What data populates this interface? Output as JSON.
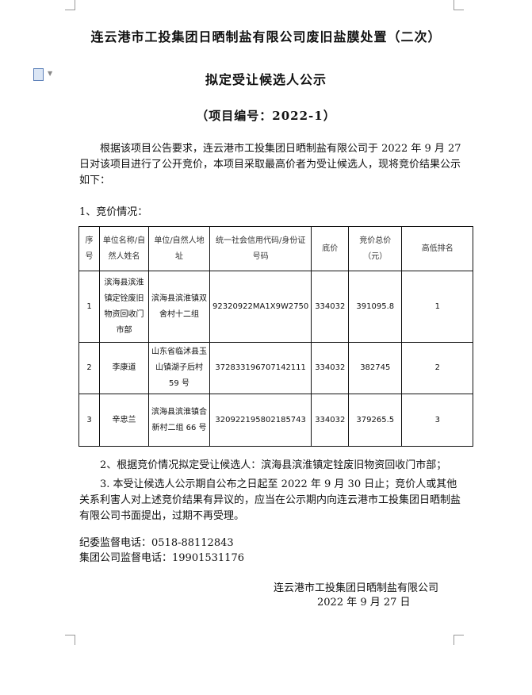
{
  "title_line1": "连云港市工投集团日晒制盐有限公司废旧盐膜处置（二次）",
  "title_line2": "拟定受让候选人公示",
  "project_no": "（项目编号：2022-1）",
  "intro": "根据该项目公告要求，连云港市工投集团日晒制盐有限公司于 2022 年 9 月 27 日对该项目进行了公开竞价，本项目采取最高价者为受让候选人，现将竞价结果公示如下：",
  "section1": "1、竞价情况：",
  "table": {
    "headers": [
      "序号",
      "单位名称/自然人姓名",
      "单位/自然人地址",
      "统一社会信用代码/身份证号码",
      "底价",
      "竞价总价（元）",
      "高低排名"
    ],
    "rows": [
      [
        "1",
        "滨海县滨淮镇定铨废旧物资回收门市部",
        "滨海县滨淮镇双舍村十二组",
        "92320922MA1X9W2750",
        "334032",
        "391095.8",
        "1"
      ],
      [
        "2",
        "李康道",
        "山东省临沭县玉山镇湖子后村 59 号",
        "372833196707142111",
        "334032",
        "382745",
        "2"
      ],
      [
        "3",
        "辛忠兰",
        "滨海县滨淮镇合新村二组 66 号",
        "320922195802185743",
        "334032",
        "379265.5",
        "3"
      ]
    ]
  },
  "section2": "2、根据竞价情况拟定受让候选人：滨海县滨淮镇定铨废旧物资回收门市部；",
  "section3": "3. 本受让候选人公示期自公布之日起至 2022 年 9 月 30 日止；竞价人或其他关系利害人对上述竞价结果有异议的，应当在公示期内向连云港市工投集团日晒制盐有限公司书面提出，过期不再受理。",
  "phone1": "纪委监督电话：0518-88112843",
  "phone2": "集团公司监督电话：19901531176",
  "signature_company": "连云港市工投集团日晒制盐有限公司",
  "signature_date": "2022 年 9 月 27 日",
  "icons": {
    "document": "document-icon",
    "dropdown": "caret-down-icon"
  }
}
